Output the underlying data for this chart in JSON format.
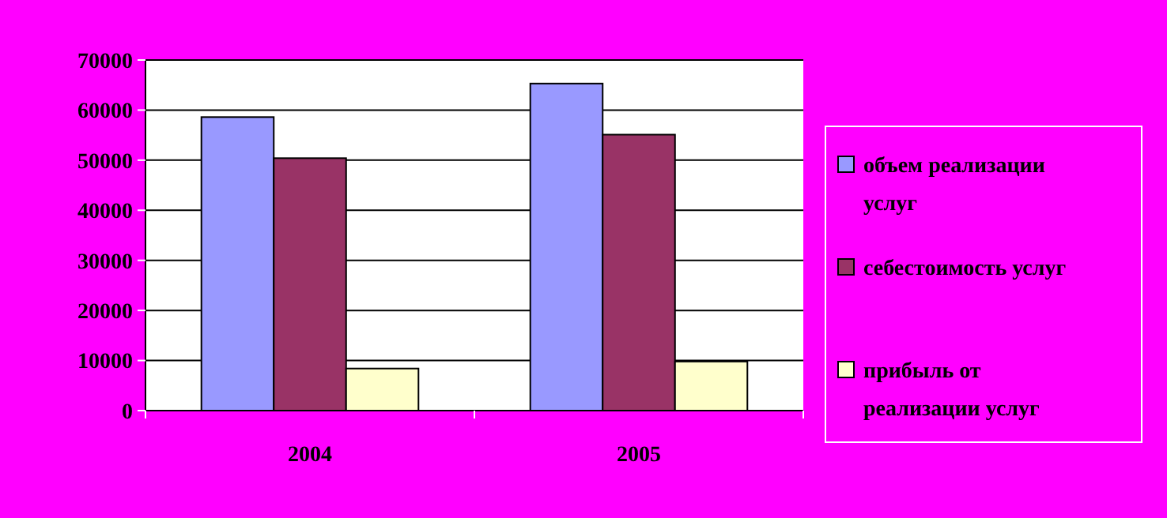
{
  "chart_data": {
    "type": "bar",
    "categories": [
      "2004",
      "2005"
    ],
    "series": [
      {
        "name": "объем реализации услуг",
        "color": "#9999ff",
        "values": [
          58600,
          65300
        ]
      },
      {
        "name": "себестоимость услуг",
        "color": "#993366",
        "values": [
          50400,
          55100
        ]
      },
      {
        "name": "прибыль от реализации услуг",
        "color": "#ffffcc",
        "values": [
          8400,
          9800
        ]
      }
    ],
    "ylim": [
      0,
      70000
    ],
    "yticks": [
      0,
      10000,
      20000,
      30000,
      40000,
      50000,
      60000,
      70000
    ],
    "grid": "y",
    "legend": "right"
  }
}
